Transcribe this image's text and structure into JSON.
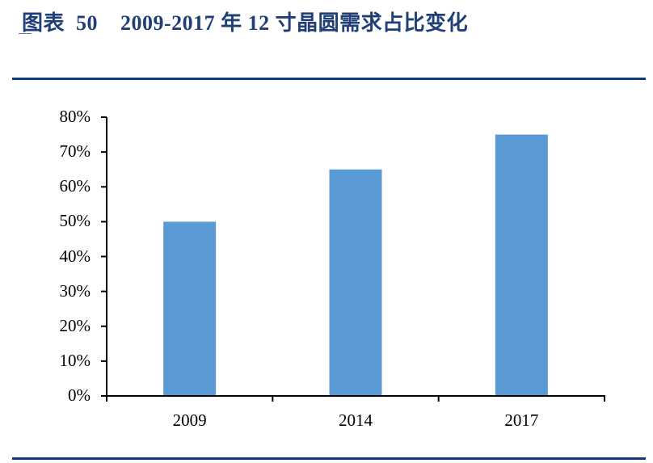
{
  "header": {
    "title": "图表  50    2009-2017 年 12 寸晶圆需求占比变化"
  },
  "colors": {
    "title": "#1f3f76",
    "rule": "#0b3c7c",
    "bar": "#5b9bd5",
    "axis": "#000000"
  },
  "chart_data": {
    "type": "bar",
    "title": "2009-2017 年 12 寸晶圆需求占比变化",
    "categories": [
      "2009",
      "2014",
      "2017"
    ],
    "values": [
      50,
      65,
      75
    ],
    "unit": "%",
    "xlabel": "",
    "ylabel": "",
    "ylim": [
      0,
      80
    ],
    "yticks": [
      "0%",
      "10%",
      "20%",
      "30%",
      "40%",
      "50%",
      "60%",
      "70%",
      "80%"
    ],
    "grid": false,
    "legend": null
  }
}
